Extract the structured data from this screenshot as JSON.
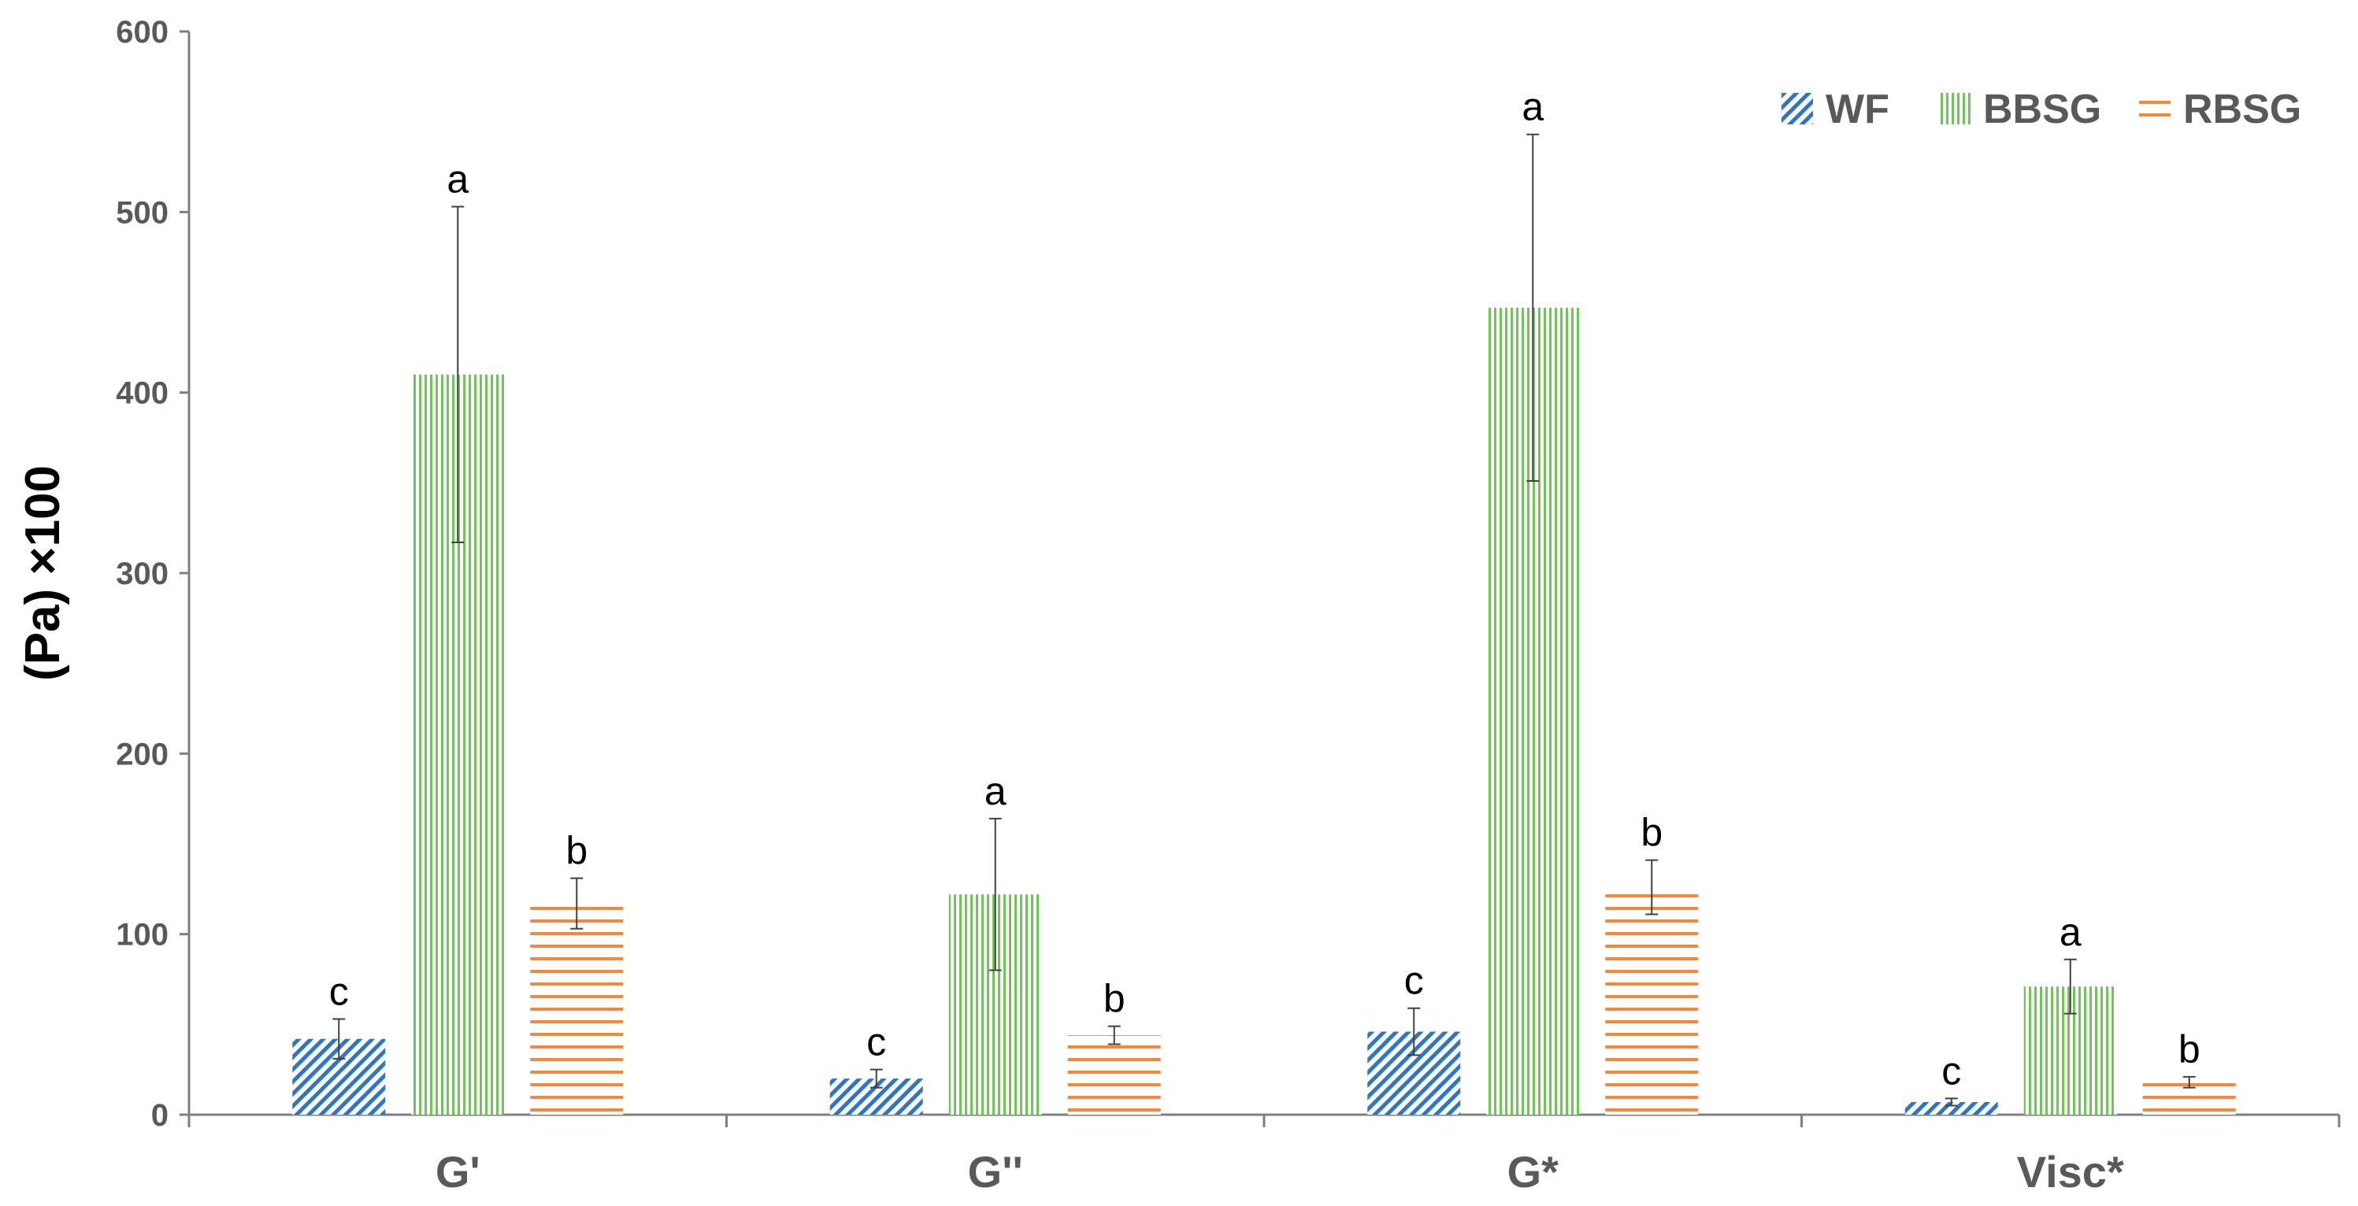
{
  "chart_data": {
    "type": "bar",
    "ylabel": "(Pa) ×100",
    "ylim": [
      0,
      600
    ],
    "yticks": [
      0,
      100,
      200,
      300,
      400,
      500,
      600
    ],
    "grid": false,
    "legend_position": "top-right",
    "categories": [
      "G'",
      "G''",
      "G*",
      "Visc*"
    ],
    "series": [
      {
        "name": "WF",
        "color": "#2E75C7",
        "pattern": "diagonal-hatch",
        "values": [
          42,
          20,
          46,
          7
        ],
        "errors": [
          11,
          5,
          13,
          2
        ],
        "letters": [
          "c",
          "c",
          "c",
          "c"
        ]
      },
      {
        "name": "BBSG",
        "color": "#70C45A",
        "pattern": "vertical-lines",
        "values": [
          410,
          122,
          447,
          71
        ],
        "errors": [
          93,
          42,
          96,
          15
        ],
        "letters": [
          "a",
          "a",
          "a",
          "a"
        ]
      },
      {
        "name": "RBSG",
        "color": "#F2883A",
        "pattern": "horizontal-lines",
        "values": [
          117,
          44,
          126,
          18
        ],
        "errors": [
          14,
          5,
          15,
          3
        ],
        "letters": [
          "b",
          "b",
          "b",
          "b"
        ]
      }
    ]
  }
}
